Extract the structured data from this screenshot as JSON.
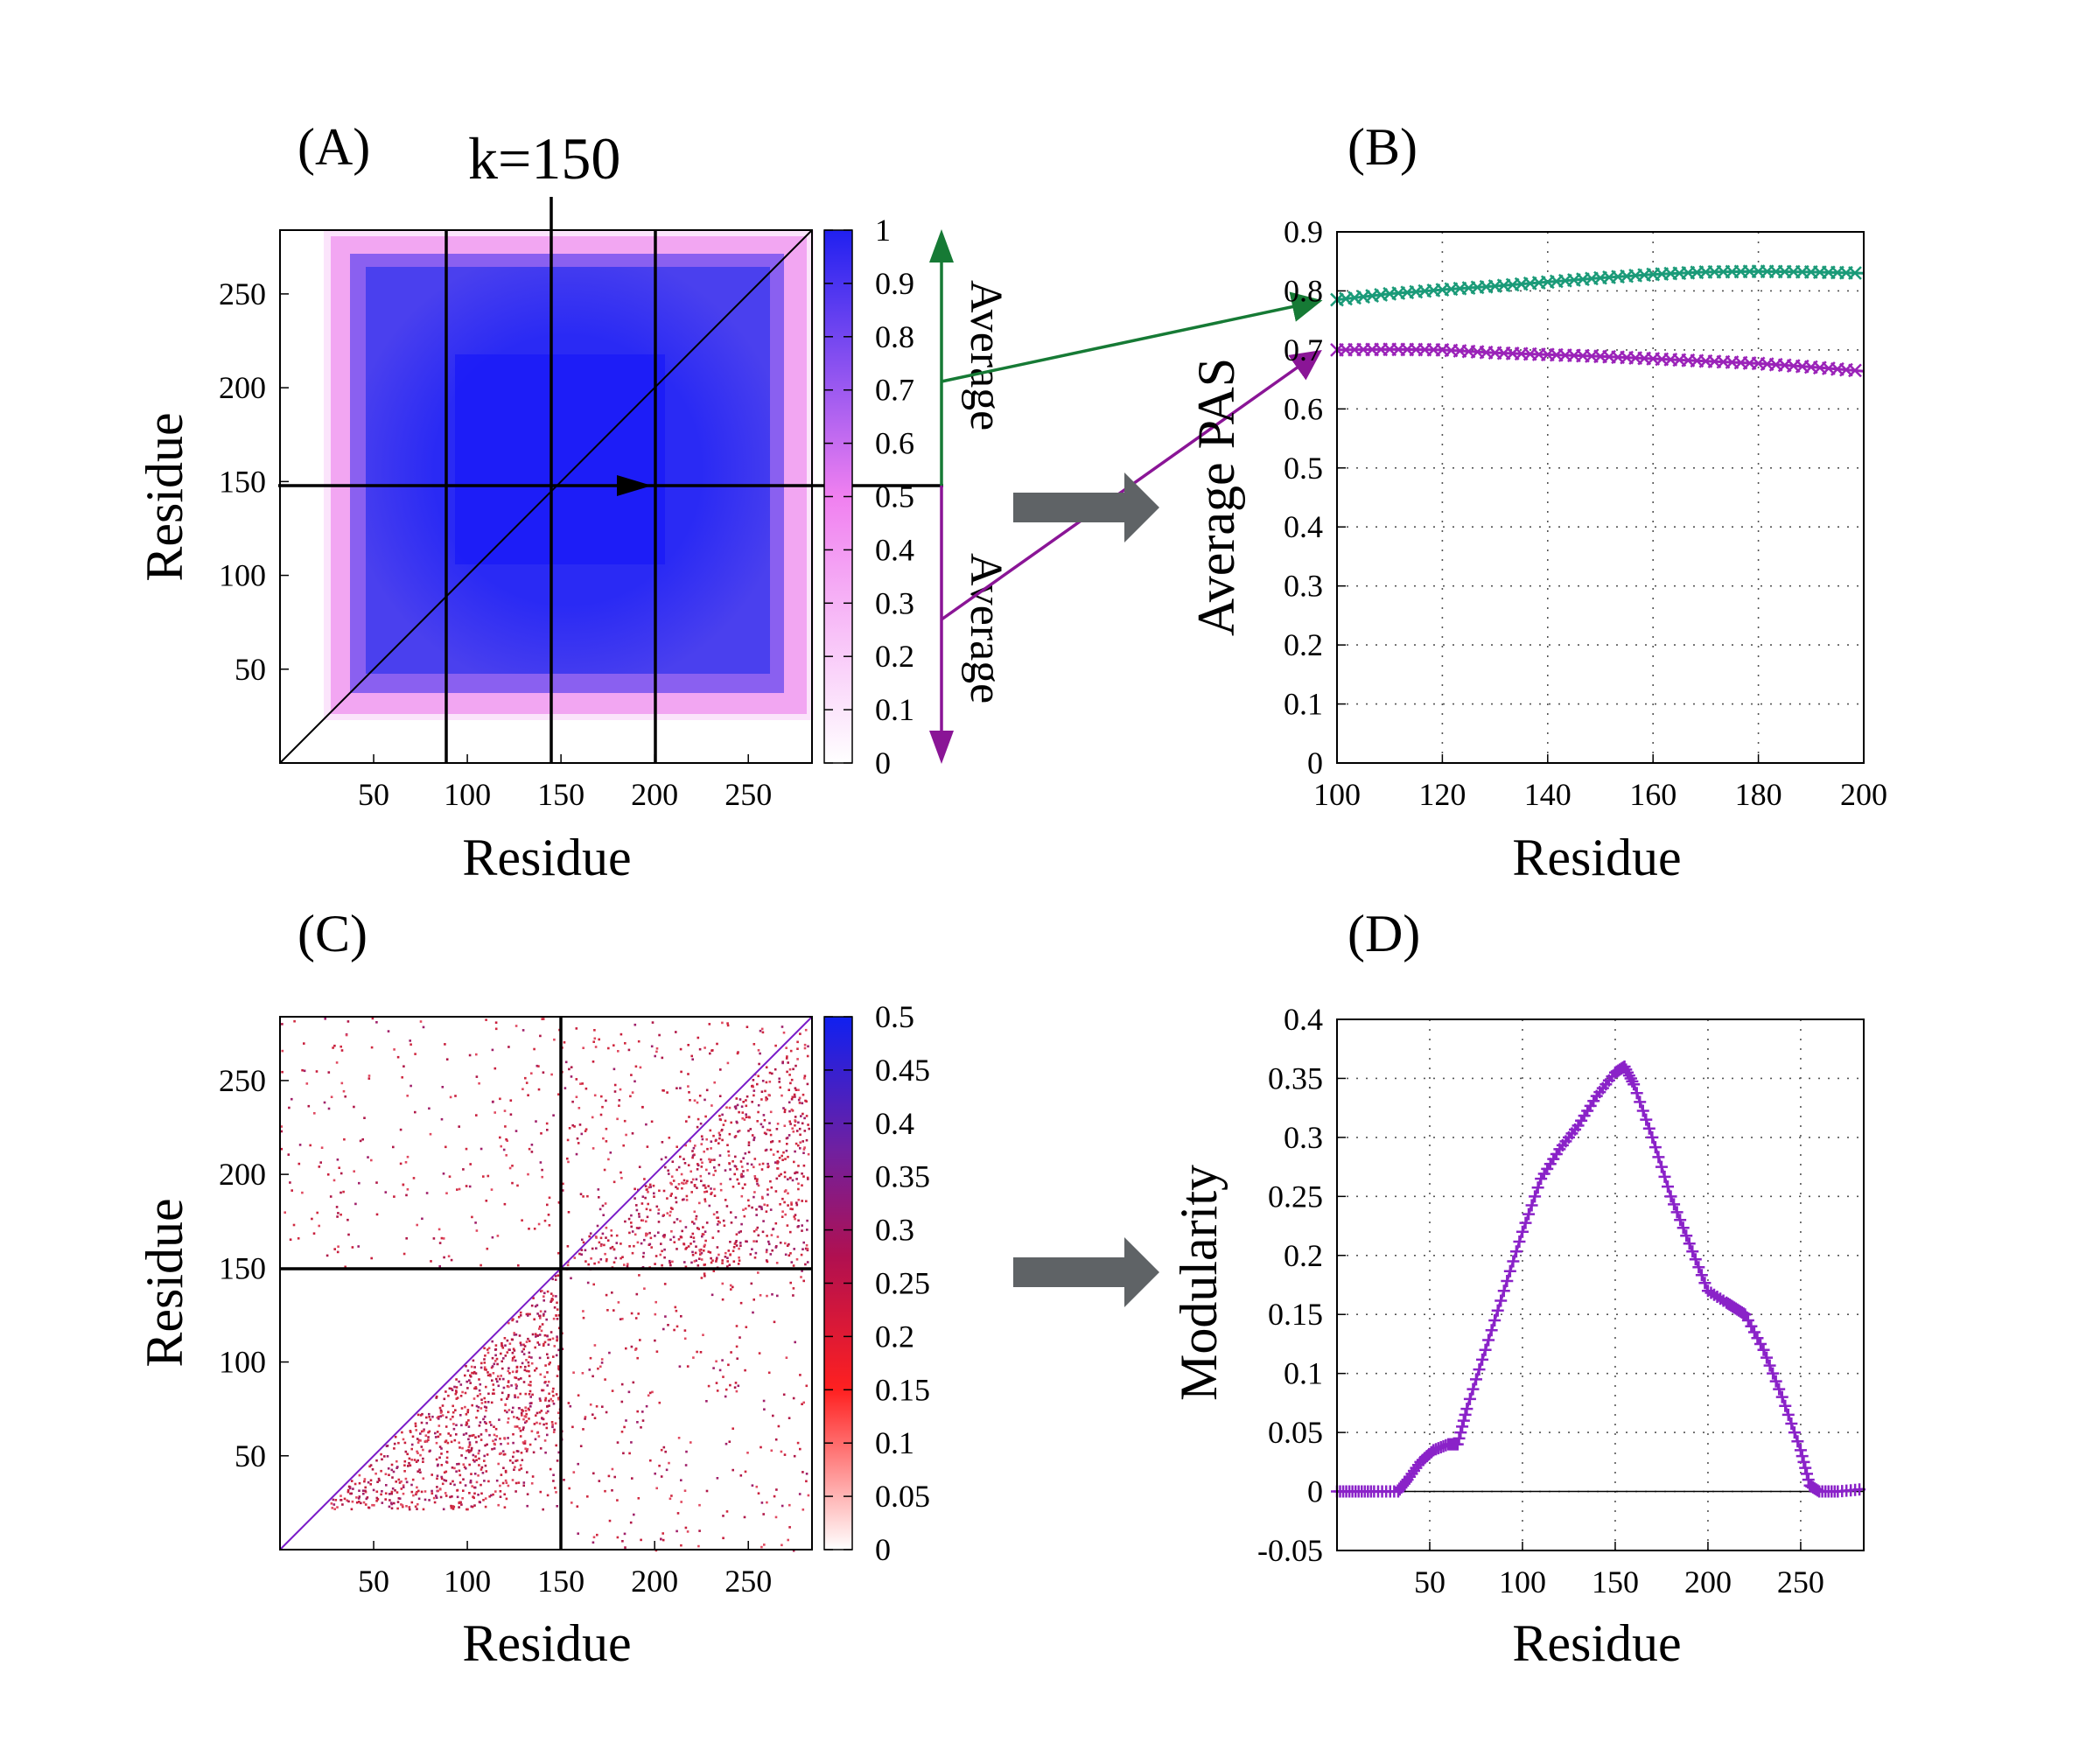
{
  "figure": {
    "panel_labels": [
      "(A)",
      "(B)",
      "(C)",
      "(D)"
    ],
    "k_label": "k=150",
    "average_label": "Average"
  },
  "colors": {
    "green_series": "#1a9a78",
    "green_arrow": "#167a35",
    "purple_series": "#9a22b8",
    "purple_arrow": "#8a1596",
    "modularity_series": "#8a22c8",
    "heatmap_blue": "#2020f0",
    "heatmap_pink": "#f080f0",
    "contact_red": "#c81e3c",
    "gray_arrow": "#5f6366"
  },
  "chart_data": [
    {
      "id": "A",
      "type": "heatmap",
      "title": "(A)",
      "annotation": "k=150",
      "xlabel": "Residue",
      "ylabel": "Residue",
      "xlim": [
        0,
        284
      ],
      "ylim": [
        0,
        284
      ],
      "xticks": [
        50,
        100,
        150,
        200,
        250
      ],
      "yticks": [
        50,
        100,
        150,
        200,
        250
      ],
      "vertical_markers": [
        90,
        145,
        200
      ],
      "horizontal_marker": 150,
      "colorbar": {
        "min": 0,
        "max": 1,
        "ticks": [
          "0",
          "0.1",
          "0.2",
          "0.3",
          "0.4",
          "0.5",
          "0.6",
          "0.7",
          "0.8",
          "0.9",
          "1"
        ]
      },
      "average_arrows": [
        "Average",
        "Average"
      ]
    },
    {
      "id": "B",
      "type": "line",
      "title": "(B)",
      "xlabel": "Residue",
      "ylabel": "Average PAS",
      "xlim": [
        100,
        200
      ],
      "ylim": [
        0,
        0.9
      ],
      "xticks": [
        "100",
        "120",
        "140",
        "160",
        "180",
        "200"
      ],
      "yticks": [
        "0",
        "0.1",
        "0.2",
        "0.3",
        "0.4",
        "0.5",
        "0.6",
        "0.7",
        "0.8",
        "0.9"
      ],
      "grid": true,
      "series": [
        {
          "name": "upper average",
          "x": [
            100,
            110,
            120,
            130,
            140,
            150,
            160,
            170,
            180,
            190,
            200
          ],
          "values": [
            0.785,
            0.795,
            0.802,
            0.808,
            0.815,
            0.822,
            0.828,
            0.832,
            0.833,
            0.832,
            0.83
          ]
        },
        {
          "name": "lower average",
          "x": [
            100,
            110,
            120,
            130,
            140,
            150,
            160,
            170,
            180,
            190,
            200
          ],
          "values": [
            0.7,
            0.701,
            0.7,
            0.695,
            0.692,
            0.689,
            0.685,
            0.681,
            0.677,
            0.671,
            0.664
          ]
        }
      ]
    },
    {
      "id": "C",
      "type": "heatmap",
      "title": "(C)",
      "xlabel": "Residue",
      "ylabel": "Residue",
      "xlim": [
        0,
        284
      ],
      "ylim": [
        0,
        284
      ],
      "xticks": [
        50,
        100,
        150,
        200,
        250
      ],
      "yticks": [
        50,
        100,
        150,
        200,
        250
      ],
      "vertical_marker": 150,
      "horizontal_marker": 150,
      "colorbar": {
        "min": 0,
        "max": 0.5,
        "ticks": [
          "0",
          "0.05",
          "0.1",
          "0.15",
          "0.2",
          "0.25",
          "0.3",
          "0.35",
          "0.4",
          "0.45",
          "0.5"
        ]
      }
    },
    {
      "id": "D",
      "type": "line",
      "title": "(D)",
      "xlabel": "Residue",
      "ylabel": "Modularity",
      "xlim": [
        0,
        284
      ],
      "ylim": [
        -0.05,
        0.4
      ],
      "xticks": [
        "50",
        "100",
        "150",
        "200",
        "250"
      ],
      "yticks": [
        "-0.05",
        "0",
        "0.05",
        "0.1",
        "0.15",
        "0.2",
        "0.25",
        "0.3",
        "0.35",
        "0.4"
      ],
      "grid": true,
      "series": [
        {
          "name": "modularity",
          "x": [
            0,
            10,
            20,
            33,
            38,
            45,
            52,
            60,
            65,
            70,
            80,
            90,
            100,
            110,
            120,
            130,
            140,
            150,
            155,
            160,
            170,
            180,
            190,
            200,
            210,
            215,
            220,
            230,
            240,
            250,
            255,
            260,
            270,
            284
          ],
          "values": [
            0,
            0,
            0,
            0,
            0.01,
            0.025,
            0.035,
            0.04,
            0.04,
            0.07,
            0.12,
            0.17,
            0.22,
            0.265,
            0.29,
            0.31,
            0.335,
            0.355,
            0.36,
            0.345,
            0.3,
            0.25,
            0.21,
            0.17,
            0.16,
            0.155,
            0.15,
            0.12,
            0.08,
            0.035,
            0.005,
            0,
            0,
            0.002
          ]
        }
      ]
    }
  ]
}
